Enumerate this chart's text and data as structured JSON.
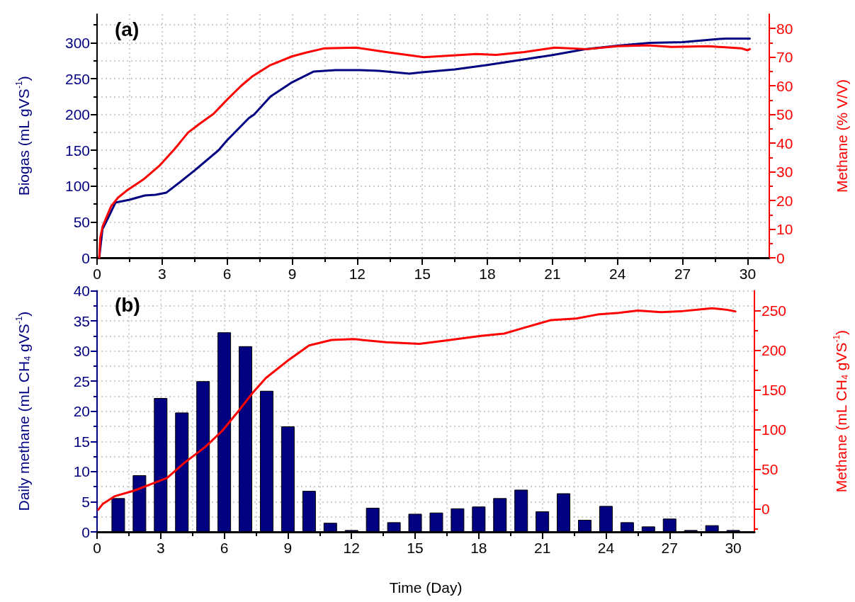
{
  "chart_data": [
    {
      "type": "line",
      "title": "(a)",
      "ylabel": "Biogas (mL gVS$^{-1}$)",
      "y2label": "Methane (% V/V)",
      "xlim": [
        0,
        31
      ],
      "xticks": [
        0,
        3,
        6,
        9,
        12,
        15,
        18,
        21,
        24,
        27,
        30
      ],
      "ylim": [
        0,
        340
      ],
      "yticks": [
        0,
        50,
        100,
        150,
        200,
        250,
        300
      ],
      "y2lim": [
        0,
        85
      ],
      "y2ticks": [
        0,
        10,
        20,
        30,
        40,
        50,
        60,
        70,
        80
      ],
      "grid": true,
      "marker": "none",
      "line_style": "solid",
      "series": [
        {
          "color": "#000080",
          "x": [
            0.1,
            0.25,
            0.5,
            0.85,
            1.5,
            2.2,
            2.7,
            3.2,
            3.8,
            4.5,
            5.6,
            6,
            7,
            7.24,
            8,
            9,
            10,
            11,
            12,
            13,
            14.4,
            15,
            16.5,
            18,
            19.5,
            21,
            22.5,
            24,
            25.5,
            27,
            28.5,
            29,
            30.1
          ],
          "values": [
            0,
            40,
            55,
            77,
            81,
            87,
            88,
            91,
            105,
            122,
            150,
            164,
            195,
            200,
            225,
            245,
            260,
            262,
            262,
            261,
            257,
            259,
            263,
            269,
            276,
            283,
            291,
            296,
            300,
            301,
            305,
            306,
            306
          ]
        },
        {
          "color": "#ff0000",
          "axis": "y2",
          "x": [
            0.1,
            0.15,
            0.26,
            0.65,
            0.97,
            1.36,
            2.13,
            2.9,
            3.56,
            4.2,
            4.72,
            5.37,
            6,
            6.66,
            7.18,
            7.96,
            9,
            9.64,
            10.5,
            11.97,
            13.5,
            15.07,
            17.5,
            18.4,
            19.7,
            21.1,
            22.6,
            24,
            25.4,
            26.5,
            28.2,
            29.7,
            30,
            30.1
          ],
          "values": [
            0,
            7,
            11,
            18,
            21,
            23.4,
            27.3,
            32.3,
            37.8,
            43.7,
            46.7,
            50.2,
            55.2,
            60.1,
            63.4,
            67.1,
            70.3,
            71.6,
            73.1,
            73.3,
            71.6,
            70,
            71.1,
            70.8,
            71.8,
            73.3,
            72.8,
            73.8,
            74.1,
            73.6,
            73.8,
            73.1,
            72.4,
            72.8
          ]
        }
      ]
    },
    {
      "type": "bar",
      "title": "(b)",
      "xlabel": "Time (Day)",
      "ylabel": "Daily methane (mL CH$_{4}$ gVS$^{-1}$)",
      "y2label": "Methane (mL CH$_{4}$ gVS$^{-1}$)",
      "xlim": [
        0,
        31
      ],
      "xticks": [
        0,
        3,
        6,
        9,
        12,
        15,
        18,
        21,
        24,
        27,
        30
      ],
      "ylim": [
        0,
        40
      ],
      "yticks": [
        0,
        5,
        10,
        15,
        20,
        25,
        30,
        35,
        40
      ],
      "y2lim": [
        -29,
        275
      ],
      "y2ticks": [
        0,
        50,
        100,
        150,
        200,
        250
      ],
      "grid": true,
      "marker": "none",
      "line_style": "solid",
      "series": [
        {
          "color": "#000080",
          "x": [
            1,
            2,
            3,
            4,
            5,
            6,
            7,
            8,
            9,
            10,
            11,
            12,
            13,
            14,
            15,
            16,
            17,
            18,
            19,
            20,
            21,
            22,
            23,
            24,
            25,
            26,
            27,
            28,
            29,
            30
          ],
          "values": [
            5.6,
            9.4,
            22.2,
            19.8,
            25,
            33.1,
            30.8,
            23.4,
            17.5,
            6.8,
            1.5,
            0.3,
            4,
            1.6,
            3,
            3.2,
            3.9,
            4.2,
            5.6,
            7,
            3.4,
            6.4,
            2,
            4.3,
            1.6,
            0.9,
            2.2,
            0.3,
            1.1,
            0.3
          ]
        },
        {
          "type": "line",
          "axis": "y2",
          "color": "#ff0000",
          "x": [
            0.06,
            0.26,
            0.84,
            1.75,
            2.52,
            3.3,
            4.07,
            5.1,
            5.89,
            6.66,
            7.3,
            7.96,
            9,
            10,
            11.06,
            12.1,
            13.65,
            15.2,
            16.4,
            18.1,
            19.2,
            20.1,
            21.4,
            22.6,
            23.6,
            24.6,
            25.5,
            26.6,
            27.5,
            29,
            29.7,
            30.1
          ],
          "values": [
            -1,
            6,
            16,
            23,
            31,
            39,
            57,
            78,
            98,
            123,
            145,
            165,
            187,
            206,
            213,
            214,
            210,
            208,
            212,
            218,
            221,
            228,
            238,
            240,
            245,
            247,
            250,
            248,
            249,
            253,
            251,
            249
          ]
        }
      ]
    }
  ]
}
